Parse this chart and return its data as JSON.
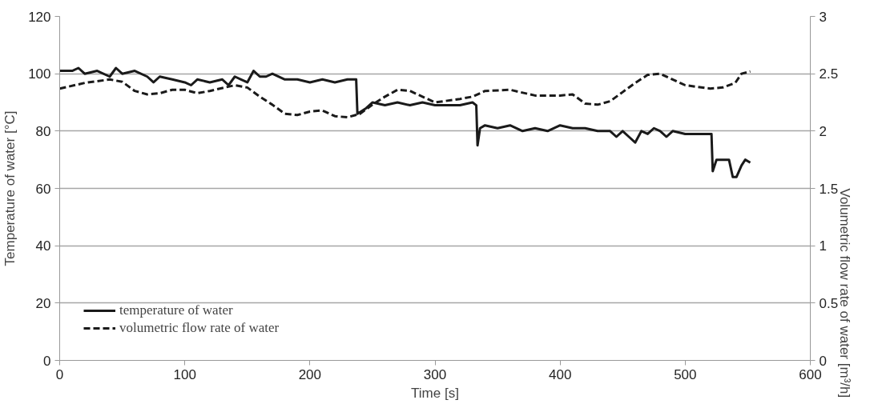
{
  "chart_data": {
    "type": "line",
    "xlabel": "Time [s]",
    "ylabel": "Temperature of water [°C]",
    "y2label": "Volumetric flow rate of water [m³/h]",
    "xlim": [
      0,
      600
    ],
    "xticks": [
      0,
      100,
      200,
      300,
      400,
      500,
      600
    ],
    "ylim": [
      0,
      120
    ],
    "yticks": [
      0,
      20,
      40,
      60,
      80,
      100,
      120
    ],
    "y2lim": [
      0,
      3
    ],
    "y2ticks": [
      0,
      0.5,
      1,
      1.5,
      2,
      2.5,
      3
    ],
    "grid": "y",
    "legend": "bottom left",
    "series": [
      {
        "name": "temperature of water",
        "color": "#1a1a1a",
        "line_style": "solid",
        "x": [
          0,
          10,
          15,
          20,
          30,
          40,
          45,
          50,
          60,
          70,
          75,
          80,
          90,
          100,
          105,
          110,
          120,
          130,
          135,
          140,
          145,
          150,
          155,
          160,
          165,
          170,
          180,
          190,
          200,
          210,
          220,
          230,
          237,
          238,
          245,
          250,
          260,
          270,
          280,
          290,
          300,
          310,
          320,
          330,
          333,
          334,
          336,
          340,
          350,
          360,
          370,
          380,
          390,
          400,
          410,
          420,
          430,
          440,
          445,
          450,
          455,
          460,
          465,
          470,
          475,
          480,
          485,
          490,
          500,
          510,
          520,
          521,
          522,
          525,
          530,
          535,
          538,
          541,
          545,
          548,
          552
        ],
        "values": [
          101,
          101,
          102,
          100,
          101,
          99,
          102,
          100,
          101,
          99,
          97,
          99,
          98,
          97,
          96,
          98,
          97,
          98,
          96,
          99,
          98,
          97,
          101,
          99,
          99,
          100,
          98,
          98,
          97,
          98,
          97,
          98,
          98,
          86,
          88,
          90,
          89,
          90,
          89,
          90,
          89,
          89,
          89,
          90,
          89,
          75,
          81,
          82,
          81,
          82,
          80,
          81,
          80,
          82,
          81,
          81,
          80,
          80,
          78,
          80,
          78,
          76,
          80,
          79,
          81,
          80,
          78,
          80,
          79,
          79,
          79,
          79,
          66,
          70,
          70,
          70,
          64,
          64,
          68,
          70,
          69
        ]
      },
      {
        "name": "volumetric flow rate of water",
        "color": "#1a1a1a",
        "line_style": "dashed",
        "axis": "y2",
        "x": [
          0,
          20,
          40,
          50,
          60,
          70,
          80,
          90,
          100,
          110,
          120,
          140,
          150,
          160,
          170,
          180,
          190,
          200,
          210,
          220,
          230,
          240,
          250,
          260,
          270,
          280,
          290,
          300,
          320,
          330,
          340,
          360,
          380,
          400,
          410,
          420,
          430,
          440,
          450,
          460,
          470,
          480,
          490,
          500,
          520,
          530,
          540,
          545,
          552
        ],
        "values": [
          2.37,
          2.42,
          2.45,
          2.43,
          2.35,
          2.32,
          2.33,
          2.36,
          2.36,
          2.33,
          2.35,
          2.4,
          2.38,
          2.3,
          2.23,
          2.15,
          2.14,
          2.17,
          2.18,
          2.13,
          2.12,
          2.15,
          2.23,
          2.3,
          2.36,
          2.35,
          2.3,
          2.25,
          2.28,
          2.3,
          2.35,
          2.36,
          2.31,
          2.31,
          2.32,
          2.24,
          2.23,
          2.26,
          2.34,
          2.42,
          2.49,
          2.5,
          2.45,
          2.4,
          2.37,
          2.38,
          2.42,
          2.5,
          2.52
        ]
      }
    ]
  }
}
